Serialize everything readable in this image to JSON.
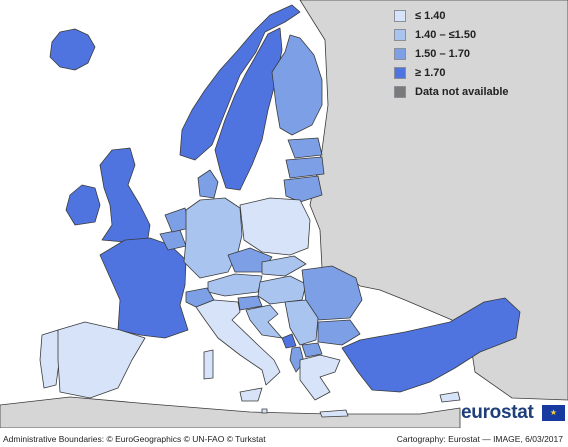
{
  "colors": {
    "sea": "#ffffff",
    "non_eu_land": "#d6d6d6",
    "border": "#3b3b3b",
    "class_1": "#d6e3f8",
    "class_2": "#a9c4ef",
    "class_3": "#7c9fe6",
    "class_4": "#4f74e0",
    "no_data": "#7a7a7a"
  },
  "legend": [
    {
      "label": "≤ 1.40",
      "color_key": "class_1"
    },
    {
      "label": "1.40 – ≤1.50",
      "color_key": "class_2"
    },
    {
      "label": "1.50 – 1.70",
      "color_key": "class_3"
    },
    {
      "label": "≥ 1.70",
      "color_key": "class_4"
    },
    {
      "label": "Data not available",
      "color_key": "no_data"
    }
  ],
  "regions": [
    {
      "name": "Iceland",
      "class": "class_4"
    },
    {
      "name": "Norway",
      "class": "class_4"
    },
    {
      "name": "Sweden",
      "class": "class_4"
    },
    {
      "name": "Finland",
      "class": "class_3"
    },
    {
      "name": "Estonia",
      "class": "class_3"
    },
    {
      "name": "Latvia",
      "class": "class_3"
    },
    {
      "name": "Lithuania",
      "class": "class_3"
    },
    {
      "name": "Ireland",
      "class": "class_4"
    },
    {
      "name": "United Kingdom",
      "class": "class_4"
    },
    {
      "name": "France",
      "class": "class_4"
    },
    {
      "name": "Belgium",
      "class": "class_3"
    },
    {
      "name": "Netherlands",
      "class": "class_3"
    },
    {
      "name": "Denmark",
      "class": "class_3"
    },
    {
      "name": "Germany",
      "class": "class_2"
    },
    {
      "name": "Poland",
      "class": "class_1"
    },
    {
      "name": "Czechia",
      "class": "class_3"
    },
    {
      "name": "Slovakia",
      "class": "class_2"
    },
    {
      "name": "Austria",
      "class": "class_2"
    },
    {
      "name": "Switzerland",
      "class": "class_3"
    },
    {
      "name": "Hungary",
      "class": "class_2"
    },
    {
      "name": "Slovenia",
      "class": "class_3"
    },
    {
      "name": "Romania",
      "class": "class_3"
    },
    {
      "name": "Bulgaria",
      "class": "class_3"
    },
    {
      "name": "Croatia",
      "class": "class_2"
    },
    {
      "name": "Serbia",
      "class": "class_2"
    },
    {
      "name": "Montenegro",
      "class": "class_4"
    },
    {
      "name": "North Macedonia",
      "class": "class_3"
    },
    {
      "name": "Albania",
      "class": "class_3"
    },
    {
      "name": "Portugal",
      "class": "class_1"
    },
    {
      "name": "Spain",
      "class": "class_1"
    },
    {
      "name": "Italy",
      "class": "class_1"
    },
    {
      "name": "Greece",
      "class": "class_1"
    },
    {
      "name": "Cyprus",
      "class": "class_1"
    },
    {
      "name": "Malta",
      "class": "class_1"
    },
    {
      "name": "Turkey",
      "class": "class_4"
    }
  ],
  "logo_text": "eurostat",
  "flag_stars": "★",
  "footer": {
    "left": "Administrative Boundaries: © EuroGeographics © UN-FAO © Turkstat",
    "right": "Cartography: Eurostat — IMAGE, 6/03/2017"
  }
}
